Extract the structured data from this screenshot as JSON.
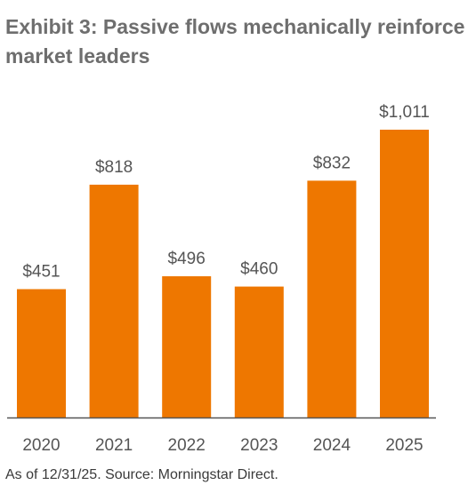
{
  "title": "Exhibit 3: Passive flows mechanically reinforce market leaders",
  "source_note": "As of 12/31/25. Source: Morningstar Direct.",
  "colors": {
    "bar": "#ee7700",
    "title": "#6e6e6e",
    "axis": "#555555",
    "label": "#555555"
  },
  "chart_data": {
    "type": "bar",
    "title": "Exhibit 3: Passive flows mechanically reinforce market leaders",
    "xlabel": "",
    "ylabel": "",
    "categories": [
      "2020",
      "2021",
      "2022",
      "2023",
      "2024",
      "2025"
    ],
    "values": [
      451,
      818,
      496,
      460,
      832,
      1011
    ],
    "data_labels": [
      "$451",
      "$818",
      "$496",
      "$460",
      "$832",
      "$1,011"
    ],
    "ylim": [
      0,
      1011
    ],
    "grid": false,
    "legend": "none"
  }
}
